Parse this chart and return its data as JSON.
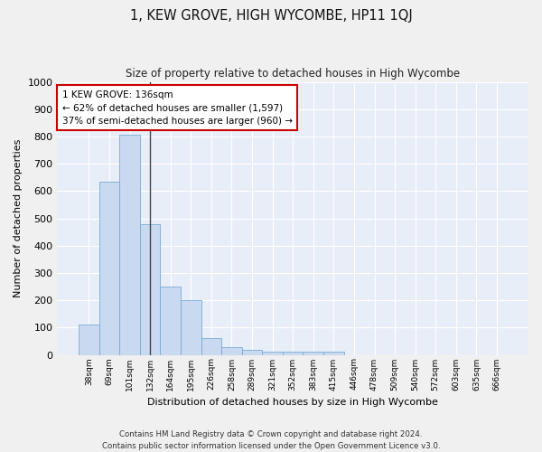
{
  "title": "1, KEW GROVE, HIGH WYCOMBE, HP11 1QJ",
  "subtitle": "Size of property relative to detached houses in High Wycombe",
  "xlabel": "Distribution of detached houses by size in High Wycombe",
  "ylabel": "Number of detached properties",
  "bar_color": "#c9d9f0",
  "bar_edge_color": "#7aaad4",
  "background_color": "#e8eef8",
  "grid_color": "#ffffff",
  "categories": [
    "38sqm",
    "69sqm",
    "101sqm",
    "132sqm",
    "164sqm",
    "195sqm",
    "226sqm",
    "258sqm",
    "289sqm",
    "321sqm",
    "352sqm",
    "383sqm",
    "415sqm",
    "446sqm",
    "478sqm",
    "509sqm",
    "540sqm",
    "572sqm",
    "603sqm",
    "635sqm",
    "666sqm"
  ],
  "values": [
    110,
    635,
    805,
    480,
    250,
    200,
    60,
    28,
    18,
    12,
    10,
    10,
    10,
    0,
    0,
    0,
    0,
    0,
    0,
    0,
    0
  ],
  "ylim": [
    0,
    1000
  ],
  "yticks": [
    0,
    100,
    200,
    300,
    400,
    500,
    600,
    700,
    800,
    900,
    1000
  ],
  "annotation_line1": "1 KEW GROVE: 136sqm",
  "annotation_line2": "← 62% of detached houses are smaller (1,597)",
  "annotation_line3": "37% of semi-detached houses are larger (960) →",
  "footnote1": "Contains HM Land Registry data © Crown copyright and database right 2024.",
  "footnote2": "Contains public sector information licensed under the Open Government Licence v3.0.",
  "fig_facecolor": "#f0f0f0"
}
